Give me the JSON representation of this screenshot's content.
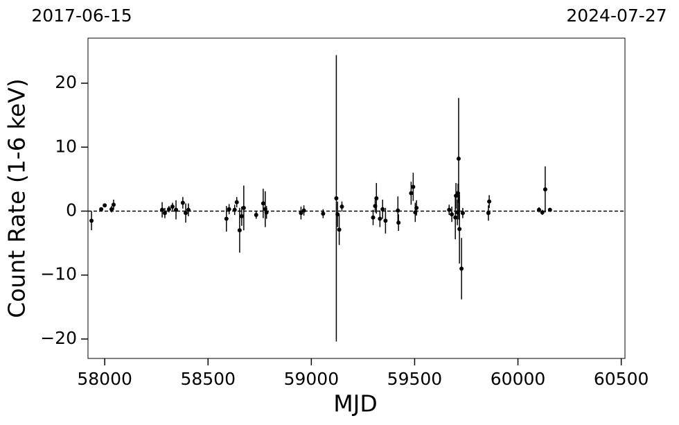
{
  "chart_data": {
    "type": "errorbar-scatter",
    "top_left_label": "2017-06-15",
    "top_right_label": "2024-07-27",
    "x_label": "MJD",
    "y_label": "Count Rate (1-6 keV)",
    "xlim": [
      57919,
      60518
    ],
    "ylim": [
      -23.04,
      27.05
    ],
    "xticks": [
      58000,
      58500,
      59000,
      59500,
      60000,
      60500
    ],
    "yticks": [
      {
        "value": -20,
        "label": "−20"
      },
      {
        "value": -10,
        "label": "−10"
      },
      0,
      10,
      20
    ],
    "reference_line": 0,
    "color": "#000000",
    "series": [
      {
        "name": "Count Rate",
        "color": "#000000",
        "x": [
          57936,
          57983,
          58000,
          58033,
          58043,
          58278,
          58291,
          58311,
          58328,
          58345,
          58378,
          58392,
          58405,
          58589,
          58602,
          58629,
          58639,
          58653,
          58663,
          58673,
          58733,
          58767,
          58777,
          58783,
          58950,
          58964,
          59057,
          59121,
          59127,
          59135,
          59148,
          59299,
          59309,
          59315,
          59332,
          59345,
          59359,
          59419,
          59422,
          59483,
          59493,
          59503,
          59509,
          59667,
          59680,
          59697,
          59700,
          59707,
          59710,
          59713,
          59717,
          59727,
          59733,
          59857,
          59861,
          60102,
          60118,
          60132,
          60155
        ],
        "values": [
          -1.5,
          0.3,
          0.9,
          0.3,
          1.0,
          0.2,
          -0.3,
          0.3,
          0.7,
          0.2,
          1.3,
          -0.3,
          0.2,
          -1.2,
          0.3,
          0.2,
          1.4,
          -3.0,
          -0.8,
          0.5,
          -0.6,
          1.2,
          0.3,
          -0.2,
          -0.3,
          0.1,
          -0.4,
          2.0,
          -0.5,
          -2.9,
          0.7,
          -1.0,
          0.8,
          2.0,
          -1.2,
          0.3,
          -1.5,
          0.1,
          -1.8,
          2.8,
          3.8,
          -0.2,
          0.5,
          0.2,
          -0.5,
          -1.0,
          2.4,
          -0.2,
          2.8,
          8.2,
          -2.8,
          -9.0,
          -0.3,
          -0.3,
          1.5,
          0.2,
          -0.2,
          3.4,
          0.2
        ],
        "errors": [
          1.5,
          0.3,
          0.3,
          0.5,
          0.8,
          1.2,
          0.8,
          0.5,
          0.6,
          1.5,
          0.9,
          1.5,
          1.0,
          2.0,
          0.8,
          0.8,
          0.8,
          3.5,
          1.5,
          3.5,
          0.6,
          2.3,
          2.8,
          1.0,
          1.0,
          0.8,
          0.7,
          22.4,
          2.0,
          2.4,
          0.8,
          1.2,
          1.0,
          2.4,
          1.3,
          1.5,
          2.0,
          2.2,
          1.3,
          1.8,
          2.2,
          1.5,
          1.2,
          0.8,
          1.2,
          3.4,
          2.0,
          2.0,
          1.5,
          9.5,
          5.4,
          4.8,
          0.8,
          1.2,
          1.0,
          0.4,
          0.4,
          3.6,
          0.3
        ]
      }
    ]
  }
}
